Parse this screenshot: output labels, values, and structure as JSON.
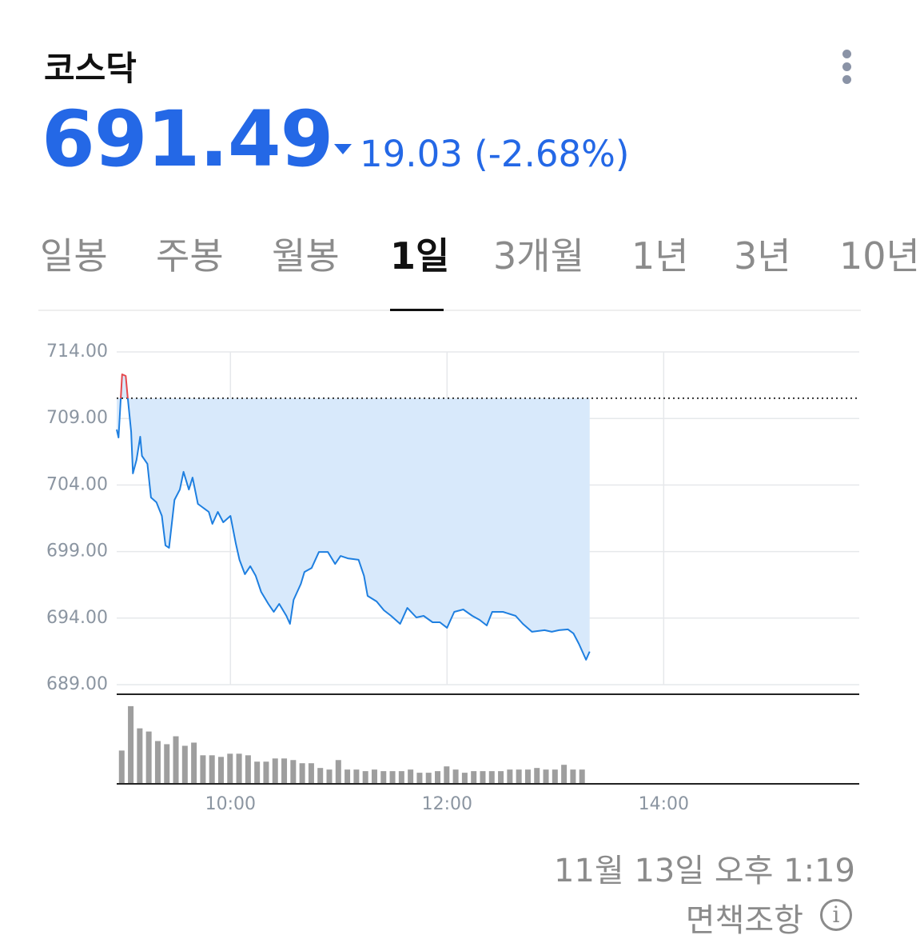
{
  "header": {
    "title": "코스닥",
    "price": "691.49",
    "change": "19.03",
    "change_pct": "(-2.68%)"
  },
  "tabs": [
    "일봉",
    "주봉",
    "월봉",
    "1일",
    "3개월",
    "1년",
    "3년",
    "10년"
  ],
  "active_tab": "1일",
  "footer": {
    "timestamp": "11월 13일 오후 1:19",
    "disclaimer": "면책조항"
  },
  "chart_data": {
    "type": "line",
    "x": [
      "08:57",
      "08:58",
      "09:00",
      "09:02",
      "09:03",
      "09:05",
      "09:06",
      "09:08",
      "09:10",
      "09:11",
      "09:14",
      "09:16",
      "09:19",
      "09:22",
      "09:24",
      "09:26",
      "09:29",
      "09:32",
      "09:34",
      "09:37",
      "09:39",
      "09:42",
      "09:45",
      "09:48",
      "09:50",
      "09:53",
      "09:56",
      "10:00",
      "10:03",
      "10:05",
      "10:08",
      "10:11",
      "10:14",
      "10:17",
      "10:21",
      "10:24",
      "10:27",
      "10:31",
      "10:33",
      "10:35",
      "10:39",
      "10:41",
      "10:45",
      "10:49",
      "10:54",
      "10:58",
      "11:01",
      "11:05",
      "11:11",
      "11:14",
      "11:16",
      "11:21",
      "11:25",
      "11:29",
      "11:34",
      "11:38",
      "11:43",
      "11:47",
      "11:52",
      "11:56",
      "12:00",
      "12:04",
      "12:09",
      "12:14",
      "12:18",
      "12:22",
      "12:25",
      "12:31",
      "12:38",
      "12:42",
      "12:47",
      "12:54",
      "12:58",
      "13:02",
      "13:07",
      "13:10",
      "13:13",
      "13:17",
      "13:19"
    ],
    "values": [
      708.17,
      707.57,
      712.32,
      712.2,
      710.69,
      707.99,
      704.87,
      705.89,
      707.63,
      706.19,
      705.59,
      703.06,
      702.7,
      701.68,
      699.46,
      699.28,
      702.88,
      703.66,
      704.99,
      703.66,
      704.56,
      702.58,
      702.28,
      701.98,
      701.08,
      701.98,
      701.2,
      701.68,
      699.58,
      698.38,
      697.3,
      697.9,
      697.18,
      695.97,
      695.07,
      694.47,
      695.07,
      694.17,
      693.57,
      695.37,
      696.57,
      697.47,
      697.77,
      698.97,
      698.97,
      698.07,
      698.67,
      698.49,
      698.38,
      697.18,
      695.67,
      695.25,
      694.59,
      694.17,
      693.57,
      694.77,
      694.05,
      694.17,
      693.69,
      693.69,
      693.27,
      694.47,
      694.65,
      694.17,
      693.87,
      693.45,
      694.47,
      694.47,
      694.17,
      693.57,
      692.97,
      693.09,
      692.97,
      693.09,
      693.15,
      692.85,
      692.07,
      690.87,
      691.49
    ],
    "color": "#1e7fe0",
    "up_color": "#e5484d",
    "area_color": "#d8e9fb",
    "reference_line": 710.52,
    "ylim": [
      689,
      714
    ],
    "yticks": [
      {
        "value": 714,
        "label": "714.00"
      },
      {
        "value": 709,
        "label": "709.00"
      },
      {
        "value": 704,
        "label": "704.00"
      },
      {
        "value": 699,
        "label": "699.00"
      },
      {
        "value": 694,
        "label": "694.00"
      },
      {
        "value": 689,
        "label": "689.00"
      }
    ],
    "xlim": [
      "08:57",
      "15:47"
    ],
    "xticks": [
      "10:00",
      "12:00",
      "14:00"
    ],
    "grid": true,
    "volume": {
      "color": "#9e9e9e",
      "ylim": [
        0,
        110
      ],
      "x": [
        "09:00",
        "09:05",
        "09:10",
        "09:15",
        "09:20",
        "09:25",
        "09:30",
        "09:35",
        "09:40",
        "09:45",
        "09:50",
        "09:55",
        "10:00",
        "10:05",
        "10:10",
        "10:15",
        "10:20",
        "10:25",
        "10:30",
        "10:35",
        "10:40",
        "10:45",
        "10:50",
        "10:55",
        "11:00",
        "11:05",
        "11:10",
        "11:15",
        "11:20",
        "11:25",
        "11:30",
        "11:35",
        "11:40",
        "11:45",
        "11:50",
        "11:55",
        "12:00",
        "12:05",
        "12:10",
        "12:15",
        "12:20",
        "12:25",
        "12:30",
        "12:35",
        "12:40",
        "12:45",
        "12:50",
        "12:55",
        "13:00",
        "13:05",
        "13:10",
        "13:15"
      ],
      "values": [
        41,
        97,
        69,
        65,
        53,
        49,
        59,
        47,
        51,
        35,
        35,
        33,
        37,
        37,
        35,
        27,
        27,
        31,
        31,
        29,
        25,
        25,
        19,
        17,
        29,
        17,
        17,
        15,
        17,
        15,
        15,
        15,
        17,
        13,
        13,
        15,
        21,
        17,
        13,
        15,
        15,
        15,
        15,
        17,
        17,
        17,
        19,
        17,
        17,
        23,
        17,
        17
      ]
    }
  }
}
